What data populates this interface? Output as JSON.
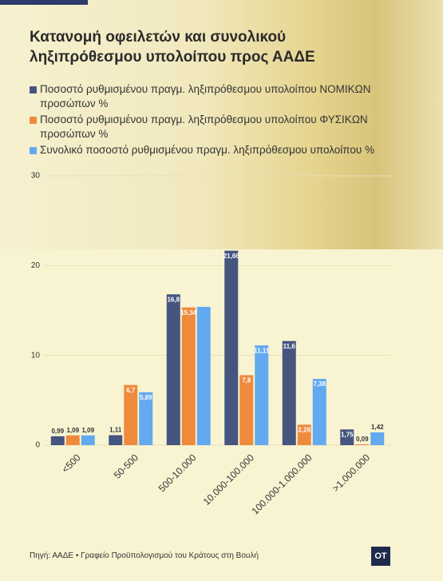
{
  "chart_data": {
    "type": "bar",
    "title": "Κατανομή οφειλετών και συνολικού ληξιπρόθεσμου υπολοίπου προς ΑΑΔΕ",
    "categories": [
      "<500",
      "50-500",
      "500-10.000",
      "10.000-100.000",
      "100.000-1.000.000",
      ">1.000.000"
    ],
    "series": [
      {
        "name": "Ποσοστό ρυθμισμένου πραγμ. ληξιπρόθεσμου υπολοίπου ΝΟΜΙΚΩΝ προσώπων %",
        "color": "#45557f",
        "values": [
          0.99,
          1.11,
          16.8,
          21.66,
          11.6,
          1.75
        ],
        "value_labels": [
          "0,99",
          "1,11",
          "16,8",
          "21,66",
          "11,6",
          "1,75"
        ]
      },
      {
        "name": "Ποσοστό ρυθμισμένου πραγμ. ληξιπρόθεσμου υπολοίπου ΦΥΣΙΚΩΝ προσώπων %",
        "color": "#ef8a3d",
        "values": [
          1.09,
          6.7,
          15.34,
          7.8,
          2.28,
          0.09
        ],
        "value_labels": [
          "1,09",
          "6,7",
          "15,34",
          "7,8",
          "2,28",
          "0,09"
        ]
      },
      {
        "name": "Συνολικό ποσοστό ρυθμισμένου πραγμ. ληξιπρόθεσμου υπολοίπου %",
        "color": "#62a9f0",
        "values": [
          1.09,
          5.89,
          15.4,
          11.11,
          7.38,
          1.42
        ],
        "value_labels": [
          "1,09",
          "5,89",
          null,
          "11,11",
          "7,38",
          "1,42"
        ]
      }
    ],
    "ylim": [
      0,
      30
    ],
    "yticks": [
      0,
      10,
      20,
      30
    ],
    "grid": true,
    "source": "Πηγή: ΑΑΔΕ • Γραφείο Προϋπολογισμού του Κράτους στη Βουλή",
    "logo": "OT"
  }
}
